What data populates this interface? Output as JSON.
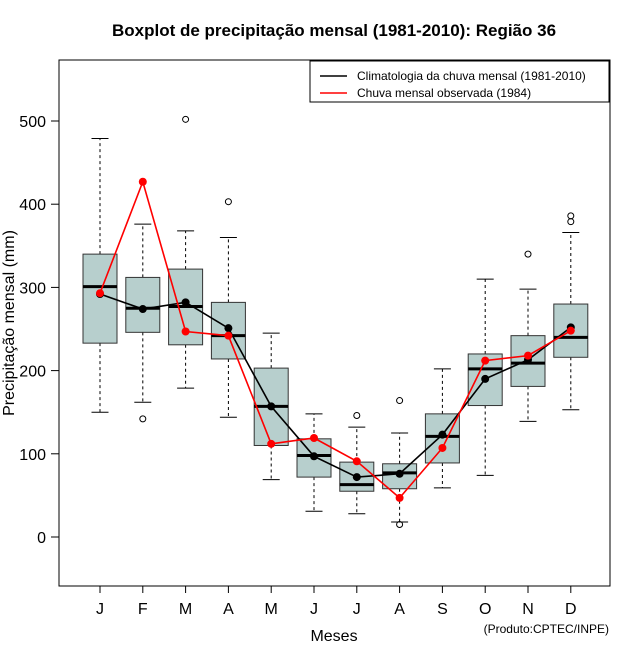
{
  "chart_data": {
    "type": "boxplot",
    "title": "Boxplot de precipitação mensal (1981-2010): Região 36",
    "xlabel": "Meses",
    "ylabel": "Precipitação mensal (mm)",
    "credit": "(Produto:CPTEC/INPE)",
    "ylim": [
      -60,
      570
    ],
    "yticks": [
      0,
      100,
      200,
      300,
      400,
      500
    ],
    "categories": [
      "J",
      "F",
      "M",
      "A",
      "M",
      "J",
      "J",
      "A",
      "S",
      "O",
      "N",
      "D"
    ],
    "box_color": "#b7cfcd",
    "boxes": [
      {
        "whisker_low": 150,
        "q1": 233,
        "median": 301,
        "q3": 340,
        "whisker_high": 479,
        "outliers": []
      },
      {
        "whisker_low": 162,
        "q1": 246,
        "median": 275,
        "q3": 312,
        "whisker_high": 376,
        "outliers": [
          142
        ]
      },
      {
        "whisker_low": 179,
        "q1": 231,
        "median": 277,
        "q3": 322,
        "whisker_high": 368,
        "outliers": [
          502
        ]
      },
      {
        "whisker_low": 144,
        "q1": 214,
        "median": 242,
        "q3": 282,
        "whisker_high": 360,
        "outliers": [
          403
        ]
      },
      {
        "whisker_low": 69,
        "q1": 110,
        "median": 157,
        "q3": 203,
        "whisker_high": 245,
        "outliers": []
      },
      {
        "whisker_low": 31,
        "q1": 72,
        "median": 98,
        "q3": 118,
        "whisker_high": 148,
        "outliers": []
      },
      {
        "whisker_low": 28,
        "q1": 55,
        "median": 63,
        "q3": 90,
        "whisker_high": 132,
        "outliers": [
          146
        ]
      },
      {
        "whisker_low": 18,
        "q1": 58,
        "median": 77,
        "q3": 88,
        "whisker_high": 125,
        "outliers": [
          15,
          164
        ]
      },
      {
        "whisker_low": 59,
        "q1": 89,
        "median": 121,
        "q3": 148,
        "whisker_high": 202,
        "outliers": []
      },
      {
        "whisker_low": 74,
        "q1": 158,
        "median": 202,
        "q3": 220,
        "whisker_high": 310,
        "outliers": []
      },
      {
        "whisker_low": 139,
        "q1": 181,
        "median": 209,
        "q3": 242,
        "whisker_high": 298,
        "outliers": [
          340
        ]
      },
      {
        "whisker_low": 153,
        "q1": 216,
        "median": 240,
        "q3": 280,
        "whisker_high": 366,
        "outliers": [
          379,
          386
        ]
      }
    ],
    "series": [
      {
        "name": "Climatologia da chuva mensal (1981-2010)",
        "color": "#000000",
        "values": [
          292,
          274,
          282,
          251,
          157,
          97,
          72,
          76,
          123,
          190,
          213,
          252
        ]
      },
      {
        "name": "Chuva mensal observada (1984)",
        "color": "#ff0000",
        "values": [
          293,
          427,
          247,
          242,
          112,
          119,
          91,
          47,
          107,
          212,
          218,
          248
        ]
      }
    ],
    "legend_position": "top-right",
    "grid": false
  }
}
